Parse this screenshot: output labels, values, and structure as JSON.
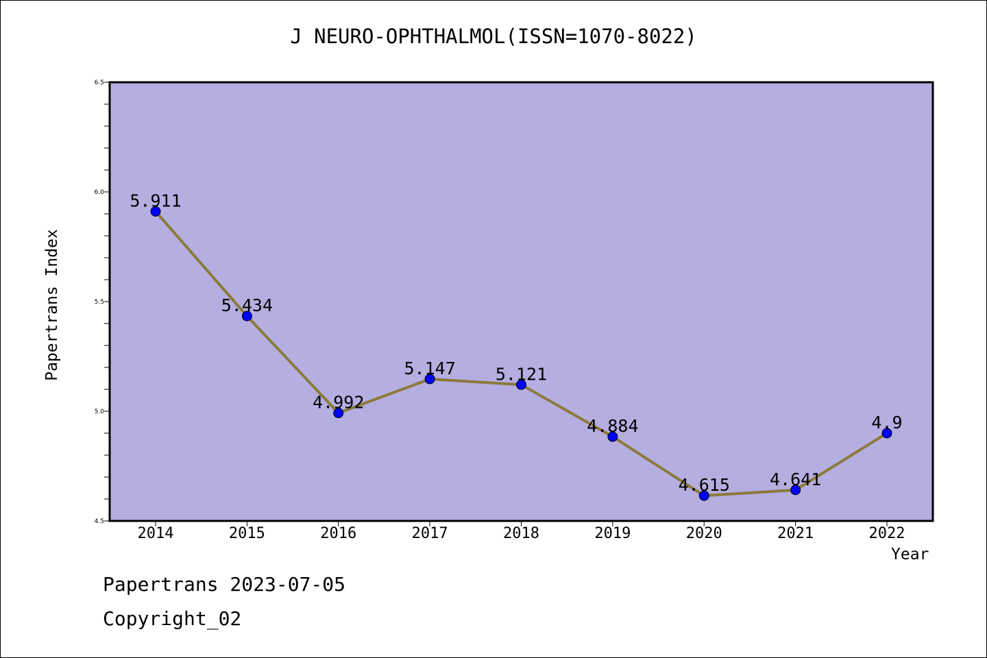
{
  "title": "J NEURO-OPHTHALMOL(ISSN=1070-8022)",
  "footer": {
    "line1": "Papertrans 2023-07-05",
    "line2": "Copyright_02"
  },
  "colors": {
    "plot_bg": "#B5AEE1",
    "line": "#8B7A3A",
    "marker": "#0000FF"
  },
  "chart_data": {
    "type": "line",
    "xlabel": "Year",
    "ylabel": "Papertrans Index",
    "ylim": [
      4.5,
      6.5
    ],
    "yticks": [
      "4.5",
      "5.0",
      "5.5",
      "6.0",
      "6.5"
    ],
    "categories": [
      "2014",
      "2015",
      "2016",
      "2017",
      "2018",
      "2019",
      "2020",
      "2021",
      "2022"
    ],
    "series": [
      {
        "values": [
          5.911,
          5.434,
          4.992,
          5.147,
          5.121,
          4.884,
          4.615,
          4.641,
          4.9
        ],
        "labels": [
          "5.911",
          "5.434",
          "4.992",
          "5.147",
          "5.121",
          "4.884",
          "4.615",
          "4.641",
          "4.9"
        ]
      }
    ],
    "grid": false,
    "legend": "none"
  }
}
